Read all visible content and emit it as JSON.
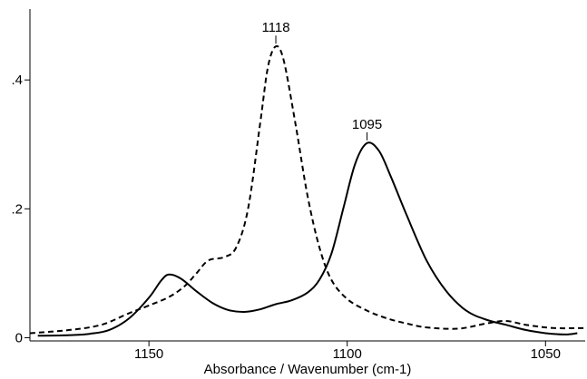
{
  "chart_data": {
    "type": "line",
    "title": "",
    "xlabel": "Absorbance / Wavenumber (cm-1)",
    "ylabel": "",
    "xlim": [
      1180,
      1040
    ],
    "ylim": [
      -0.005,
      0.51
    ],
    "x_reversed": true,
    "grid": false,
    "x_ticks": [
      {
        "value": 1150,
        "label": "1150"
      },
      {
        "value": 1100,
        "label": "1100"
      },
      {
        "value": 1050,
        "label": "1050"
      }
    ],
    "y_ticks": [
      {
        "value": 0,
        "label": "0"
      },
      {
        "value": 0.2,
        "label": ".2"
      },
      {
        "value": 0.4,
        "label": ".4"
      }
    ],
    "series": [
      {
        "style": "solid",
        "points": [
          [
            1178,
            0.003
          ],
          [
            1170,
            0.004
          ],
          [
            1165,
            0.006
          ],
          [
            1160,
            0.012
          ],
          [
            1155,
            0.03
          ],
          [
            1150,
            0.062
          ],
          [
            1147,
            0.088
          ],
          [
            1145,
            0.098
          ],
          [
            1142,
            0.092
          ],
          [
            1138,
            0.072
          ],
          [
            1134,
            0.054
          ],
          [
            1130,
            0.043
          ],
          [
            1126,
            0.04
          ],
          [
            1122,
            0.044
          ],
          [
            1118,
            0.052
          ],
          [
            1114,
            0.058
          ],
          [
            1110,
            0.07
          ],
          [
            1107,
            0.09
          ],
          [
            1104,
            0.13
          ],
          [
            1101,
            0.2
          ],
          [
            1098,
            0.27
          ],
          [
            1095,
            0.302
          ],
          [
            1092,
            0.29
          ],
          [
            1089,
            0.25
          ],
          [
            1085,
            0.19
          ],
          [
            1080,
            0.12
          ],
          [
            1075,
            0.072
          ],
          [
            1070,
            0.042
          ],
          [
            1065,
            0.028
          ],
          [
            1060,
            0.02
          ],
          [
            1055,
            0.012
          ],
          [
            1050,
            0.007
          ],
          [
            1045,
            0.005
          ],
          [
            1042,
            0.007
          ]
        ]
      },
      {
        "style": "dashed",
        "points": [
          [
            1180,
            0.007
          ],
          [
            1170,
            0.012
          ],
          [
            1162,
            0.02
          ],
          [
            1155,
            0.038
          ],
          [
            1150,
            0.05
          ],
          [
            1145,
            0.063
          ],
          [
            1141,
            0.08
          ],
          [
            1138,
            0.1
          ],
          [
            1135,
            0.12
          ],
          [
            1131,
            0.125
          ],
          [
            1128,
            0.14
          ],
          [
            1125,
            0.2
          ],
          [
            1122,
            0.33
          ],
          [
            1120,
            0.42
          ],
          [
            1118,
            0.452
          ],
          [
            1116,
            0.43
          ],
          [
            1113,
            0.33
          ],
          [
            1110,
            0.22
          ],
          [
            1107,
            0.14
          ],
          [
            1104,
            0.09
          ],
          [
            1100,
            0.06
          ],
          [
            1095,
            0.042
          ],
          [
            1090,
            0.03
          ],
          [
            1085,
            0.022
          ],
          [
            1080,
            0.016
          ],
          [
            1072,
            0.014
          ],
          [
            1065,
            0.022
          ],
          [
            1060,
            0.026
          ],
          [
            1055,
            0.02
          ],
          [
            1048,
            0.015
          ],
          [
            1040,
            0.015
          ]
        ]
      }
    ],
    "annotations": [
      {
        "text": "1118",
        "x": 1118,
        "y": 0.452
      },
      {
        "text": "1095",
        "x": 1095,
        "y": 0.302
      }
    ]
  }
}
